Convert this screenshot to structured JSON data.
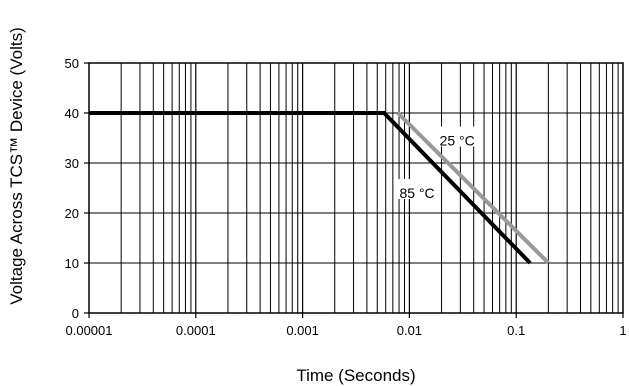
{
  "chart_data": {
    "type": "line",
    "title": "",
    "xlabel": "Time (Seconds)",
    "ylabel": "Voltage Across TCS™ Device (Volts)",
    "x_scale": "log",
    "xlim": [
      1e-05,
      1
    ],
    "ylim": [
      0,
      50
    ],
    "grid": true,
    "x_tick_values": [
      1e-05,
      0.0001,
      0.001,
      0.01,
      0.1,
      1
    ],
    "x_tick_labels": [
      "0.00001",
      "0.0001",
      "0.001",
      "0.01",
      "0.1",
      "1"
    ],
    "y_tick_values": [
      0,
      10,
      20,
      30,
      40,
      50
    ],
    "y_tick_labels": [
      "0",
      "10",
      "20",
      "30",
      "40",
      "50"
    ],
    "series": [
      {
        "name": "85 °C",
        "color": "#000000",
        "x": [
          1e-05,
          0.0058,
          0.135
        ],
        "y": [
          40,
          40,
          10
        ]
      },
      {
        "name": "25 °C",
        "color": "#999999",
        "x": [
          0.0078,
          0.2
        ],
        "y": [
          40,
          10
        ]
      }
    ]
  }
}
